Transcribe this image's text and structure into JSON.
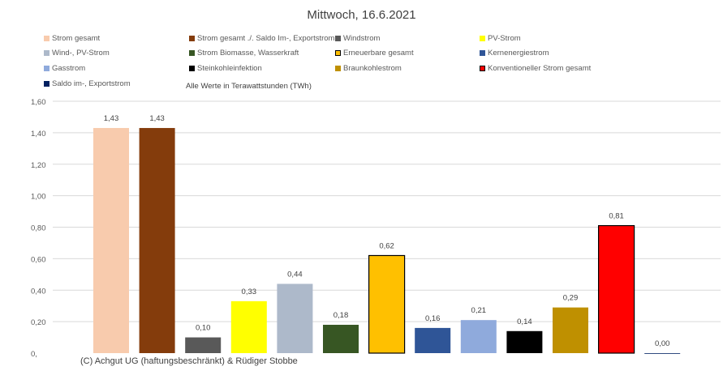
{
  "chart_data": {
    "type": "bar",
    "title": "Mittwoch,  16.6.2021",
    "subtitle": "Alle Werte in Terawattstunden (TWh)",
    "footer": "(C) Achgut UG (haftungsbeschränkt) & Rüdiger Stobbe",
    "ylim": [
      0,
      1.6
    ],
    "yticks": [
      "0,",
      "0,20",
      "0,40",
      "0,60",
      "0,80",
      "1,00",
      "1,20",
      "1,40",
      "1,60"
    ],
    "grid": true,
    "legend_position": "top",
    "series": [
      {
        "name": "Strom gesamt",
        "value": 1.43,
        "label": "1,43",
        "color": "#F8CBAD",
        "border": false
      },
      {
        "name": "Strom gesamt ./. Saldo Im-, Exportstrom",
        "value": 1.43,
        "label": "1,43",
        "color": "#843C0C",
        "border": false
      },
      {
        "name": "Windstrom",
        "value": 0.1,
        "label": "0,10",
        "color": "#595959",
        "border": false
      },
      {
        "name": "PV-Strom",
        "value": 0.33,
        "label": "0,33",
        "color": "#FFFF00",
        "border": false
      },
      {
        "name": "Wind-, PV-Strom",
        "value": 0.44,
        "label": "0,44",
        "color": "#ADB9CA",
        "border": false
      },
      {
        "name": "Strom Biomasse, Wasserkraft",
        "value": 0.18,
        "label": "0,18",
        "color": "#375623",
        "border": false
      },
      {
        "name": "Erneuerbare gesamt",
        "value": 0.62,
        "label": "0,62",
        "color": "#FFC000",
        "border": true
      },
      {
        "name": "Kernenergiestrom",
        "value": 0.16,
        "label": "0,16",
        "color": "#2F5597",
        "border": false
      },
      {
        "name": "Gasstrom",
        "value": 0.21,
        "label": "0,21",
        "color": "#8FAADC",
        "border": false
      },
      {
        "name": "Steinkohleinfektion",
        "value": 0.14,
        "label": "0,14",
        "color": "#000000",
        "border": false
      },
      {
        "name": "Braunkohlestrom",
        "value": 0.29,
        "label": "0,29",
        "color": "#BF9000",
        "border": false
      },
      {
        "name": "Konventioneller Strom gesamt",
        "value": 0.81,
        "label": "0,81",
        "color": "#FF0000",
        "border": true
      },
      {
        "name": "Saldo im-, Exportstrom",
        "value": 0.0,
        "label": "0,00",
        "color": "#002060",
        "border": false
      }
    ]
  }
}
